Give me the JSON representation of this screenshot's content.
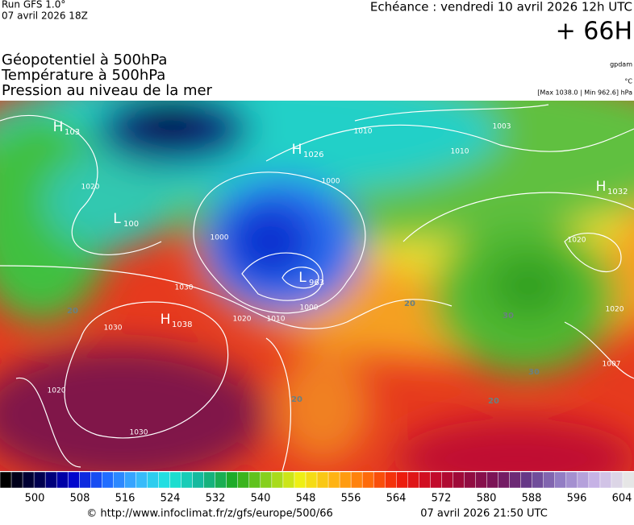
{
  "header": {
    "run": "Run GFS 1.0°",
    "run_date": "07 avril 2026 18Z",
    "forecast": "Echéance : vendredi 10 avril 2026 12h UTC",
    "lead": "+ 66H"
  },
  "legend": {
    "fields": [
      "Géopotentiel à 500hPa",
      "Température à 500hPa",
      "Pression au niveau de la mer"
    ],
    "units_geo": "gpdam",
    "units_temp": "°C",
    "pressure_range": "[Max 1038.0 | Min 962.6] hPa"
  },
  "map": {
    "centers": [
      {
        "type": "H",
        "value": "103"
      },
      {
        "type": "L",
        "value": "100"
      },
      {
        "type": "H",
        "value": "1026"
      },
      {
        "type": "H",
        "value": "1032"
      },
      {
        "type": "L",
        "value": "963"
      },
      {
        "type": "H",
        "value": "1038"
      }
    ],
    "isobar_labels": [
      "1020",
      "1010",
      "1010",
      "1003",
      "1000",
      "1000",
      "1030",
      "1030",
      "1020",
      "1010",
      "1000",
      "1020",
      "1020",
      "1030",
      "1020",
      "1007"
    ],
    "temp_labels": [
      "20",
      "20",
      "30",
      "30",
      "20",
      "20"
    ]
  },
  "colorbar": {
    "ticks": [
      500,
      508,
      516,
      524,
      532,
      540,
      548,
      556,
      564,
      572,
      580,
      588,
      596,
      604
    ]
  },
  "footer": {
    "source": "© http://www.infoclimat.fr/z/gfs/europe/500/66",
    "generated": "07 avril 2026 21:50 UTC"
  }
}
